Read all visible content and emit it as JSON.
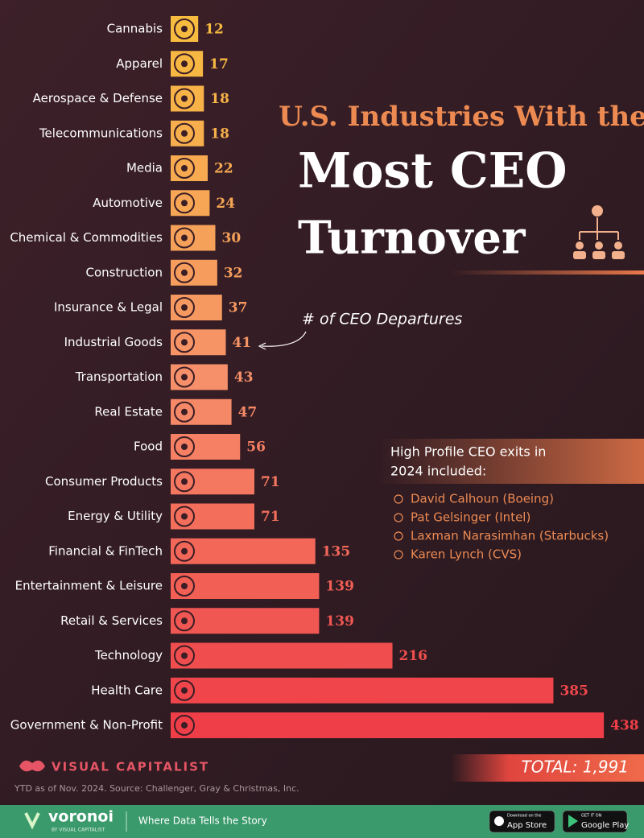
{
  "chart_data": {
    "type": "hbar",
    "title": [
      "U.S. Industries With the",
      "Most CEO",
      "Turnover"
    ],
    "annotation": "# of CEO Departures",
    "categories": [
      "Cannabis",
      "Apparel",
      "Aerospace & Defense",
      "Telecommunications",
      "Media",
      "Automotive",
      "Chemical & Commodities",
      "Construction",
      "Insurance & Legal",
      "Industrial Goods",
      "Transportation",
      "Real Estate",
      "Food",
      "Consumer Products",
      "Energy & Utility",
      "Financial & FinTech",
      "Entertainment & Leisure",
      "Retail & Services",
      "Technology",
      "Health Care",
      "Government & Non-Profit"
    ],
    "values": [
      12,
      17,
      18,
      18,
      22,
      24,
      30,
      32,
      37,
      41,
      43,
      47,
      56,
      71,
      71,
      135,
      139,
      139,
      216,
      385,
      438
    ],
    "color_stops": [
      "#f7bb3f",
      "#f6906a",
      "#ef3e47"
    ],
    "total": "TOTAL: 1,991"
  },
  "notes": {
    "heading": [
      "High Profile CEO exits in",
      "2024 included:"
    ],
    "items": [
      "David Calhoun (Boeing)",
      "Pat Gelsinger (Intel)",
      "Laxman Narasimhan (Starbucks)",
      "Karen Lynch (CVS)"
    ]
  },
  "brand": "VISUAL CAPITALIST",
  "source": "YTD as of Nov. 2024. Source: Challenger, Gray & Christmas, Inc.",
  "footer": {
    "logo": "voronoi",
    "logo_sub": "BY VISUAL CAPITALIST",
    "tagline": "Where Data Tells the Story",
    "app_store": [
      "Download on the",
      "App Store"
    ],
    "google_play": [
      "GET IT ON",
      "Google Play"
    ]
  }
}
